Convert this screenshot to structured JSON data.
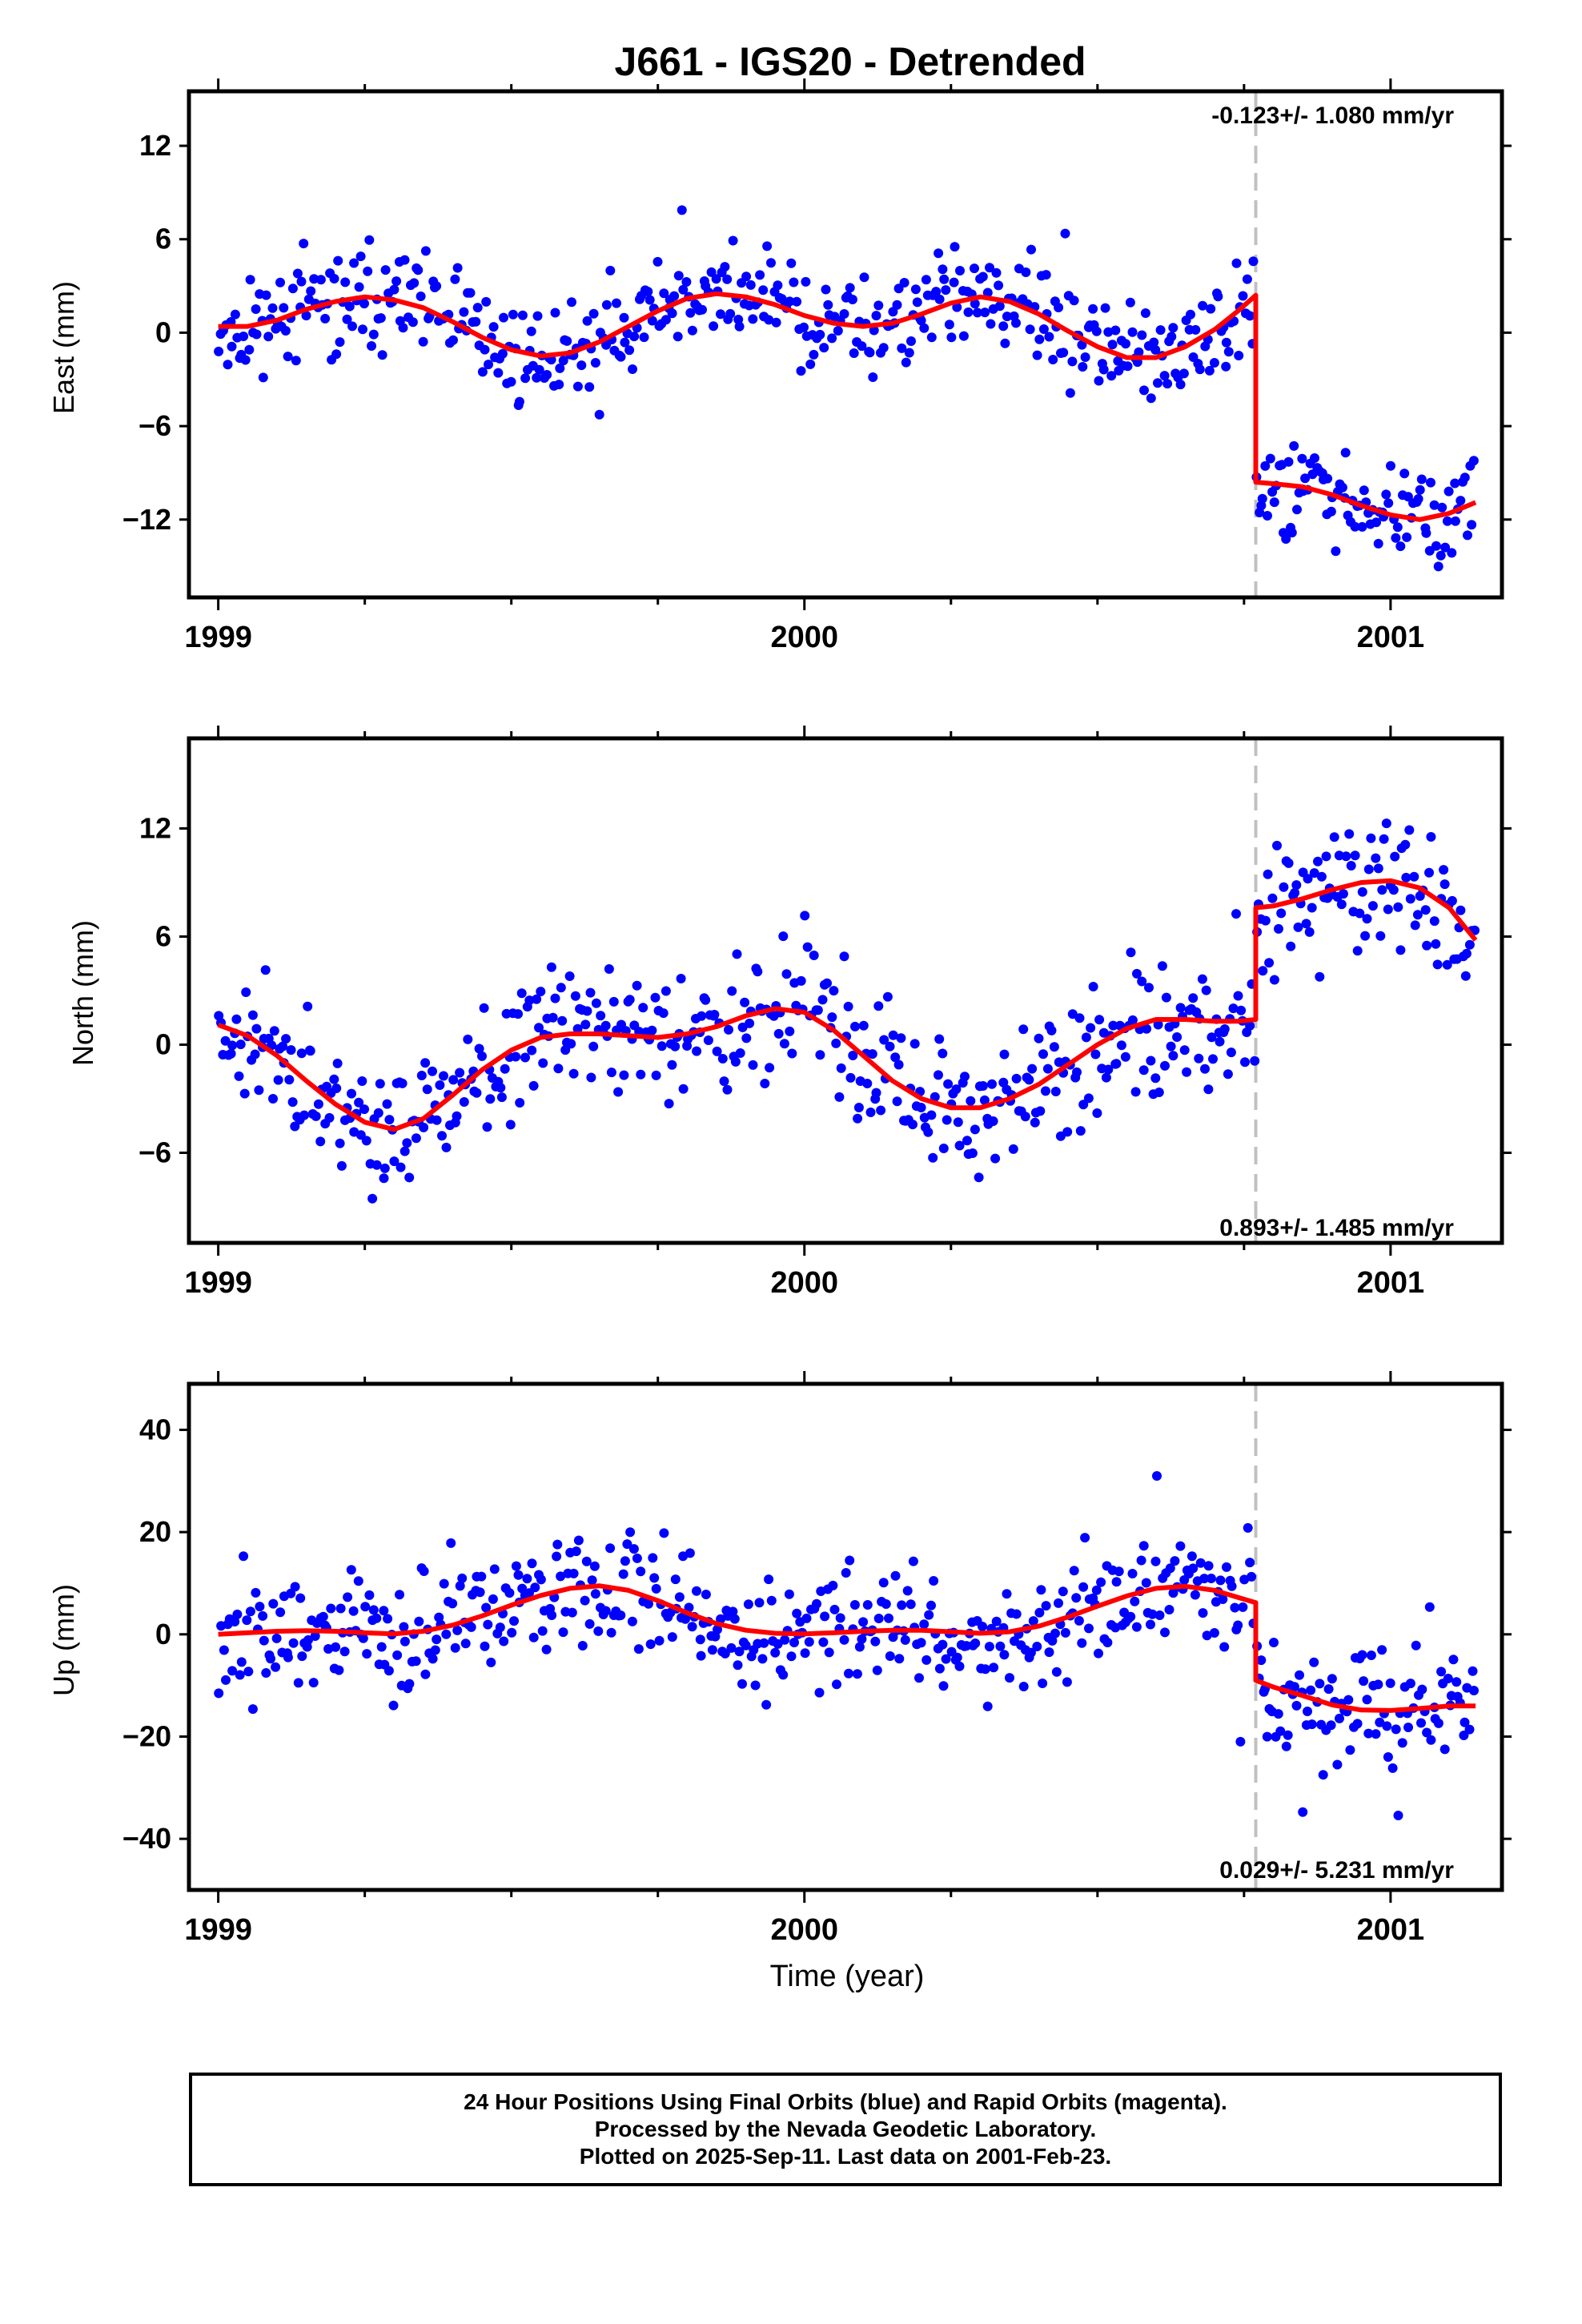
{
  "title": "J661 - IGS20 - Detrended",
  "x_axis_label": "Time (year)",
  "footer": {
    "line1": "24 Hour Positions Using Final Orbits (blue) and Rapid Orbits (magenta).",
    "line2": "Processed by the Nevada Geodetic Laboratory.",
    "line3": "Plotted on 2025-Sep-11. Last data on 2001-Feb-23."
  },
  "colors": {
    "points": "#0000ff",
    "model": "#ff0000",
    "step_line": "#c0c0c0",
    "frame": "#000000"
  },
  "chart_data": [
    {
      "type": "scatter",
      "name": "east",
      "ylabel": "East (mm)",
      "rate_text": "-0.123+/- 1.080 mm/yr",
      "rate_position": "top-right",
      "xlim": [
        1998.95,
        2001.19
      ],
      "ylim": [
        -17,
        15.5
      ],
      "x_ticks": [
        1999,
        2000,
        2001
      ],
      "y_ticks": [
        -12,
        -6,
        0,
        6,
        12
      ],
      "step_epoch": 2000.77,
      "points": {
        "start": 1999.0,
        "end": 2001.145,
        "count": 560,
        "step_offset": -12,
        "amp": 2.5,
        "noise": 2.3,
        "seed": 11
      },
      "model_points": [
        [
          1999.0,
          0.4
        ],
        [
          1999.05,
          0.4
        ],
        [
          1999.1,
          0.8
        ],
        [
          1999.15,
          1.5
        ],
        [
          1999.2,
          2.0
        ],
        [
          1999.25,
          2.3
        ],
        [
          1999.3,
          2.1
        ],
        [
          1999.35,
          1.6
        ],
        [
          1999.4,
          0.7
        ],
        [
          1999.45,
          -0.3
        ],
        [
          1999.5,
          -1.1
        ],
        [
          1999.55,
          -1.5
        ],
        [
          1999.6,
          -1.3
        ],
        [
          1999.65,
          -0.6
        ],
        [
          1999.7,
          0.4
        ],
        [
          1999.75,
          1.4
        ],
        [
          1999.8,
          2.2
        ],
        [
          1999.85,
          2.5
        ],
        [
          1999.9,
          2.3
        ],
        [
          1999.95,
          1.8
        ],
        [
          2000.0,
          1.1
        ],
        [
          2000.05,
          0.6
        ],
        [
          2000.1,
          0.4
        ],
        [
          2000.15,
          0.6
        ],
        [
          2000.2,
          1.2
        ],
        [
          2000.25,
          1.9
        ],
        [
          2000.3,
          2.3
        ],
        [
          2000.35,
          2.0
        ],
        [
          2000.4,
          1.2
        ],
        [
          2000.45,
          0.1
        ],
        [
          2000.5,
          -0.9
        ],
        [
          2000.55,
          -1.6
        ],
        [
          2000.6,
          -1.6
        ],
        [
          2000.65,
          -0.9
        ],
        [
          2000.7,
          0.2
        ],
        [
          2000.74,
          1.4
        ],
        [
          2000.77,
          2.4
        ],
        [
          2000.77,
          -9.6
        ],
        [
          2000.8,
          -9.7
        ],
        [
          2000.85,
          -9.9
        ],
        [
          2000.9,
          -10.4
        ],
        [
          2000.95,
          -11.1
        ],
        [
          2001.0,
          -11.7
        ],
        [
          2001.05,
          -12.0
        ],
        [
          2001.1,
          -11.6
        ],
        [
          2001.145,
          -10.9
        ]
      ]
    },
    {
      "type": "scatter",
      "name": "north",
      "ylabel": "North (mm)",
      "rate_text": "0.893+/- 1.485 mm/yr",
      "rate_position": "bottom-right",
      "xlim": [
        1998.95,
        2001.19
      ],
      "ylim": [
        -11,
        17
      ],
      "x_ticks": [
        1999,
        2000,
        2001
      ],
      "y_ticks": [
        -6,
        0,
        6,
        12
      ],
      "step_epoch": 2000.77,
      "points": {
        "start": 1999.0,
        "end": 2001.145,
        "count": 560,
        "step_offset": 6,
        "amp": 2.0,
        "noise": 2.6,
        "seed": 23
      },
      "model_points": [
        [
          1999.0,
          1.1
        ],
        [
          1999.05,
          0.5
        ],
        [
          1999.1,
          -0.6
        ],
        [
          1999.15,
          -2.0
        ],
        [
          1999.2,
          -3.3
        ],
        [
          1999.25,
          -4.3
        ],
        [
          1999.3,
          -4.7
        ],
        [
          1999.35,
          -4.1
        ],
        [
          1999.4,
          -2.8
        ],
        [
          1999.45,
          -1.4
        ],
        [
          1999.5,
          -0.3
        ],
        [
          1999.55,
          0.4
        ],
        [
          1999.6,
          0.6
        ],
        [
          1999.65,
          0.6
        ],
        [
          1999.7,
          0.5
        ],
        [
          1999.75,
          0.4
        ],
        [
          1999.8,
          0.6
        ],
        [
          1999.85,
          1.0
        ],
        [
          1999.9,
          1.6
        ],
        [
          1999.95,
          2.0
        ],
        [
          2000.0,
          1.8
        ],
        [
          2000.05,
          0.8
        ],
        [
          2000.1,
          -0.6
        ],
        [
          2000.15,
          -2.0
        ],
        [
          2000.2,
          -3.0
        ],
        [
          2000.25,
          -3.5
        ],
        [
          2000.3,
          -3.5
        ],
        [
          2000.35,
          -3.0
        ],
        [
          2000.4,
          -2.2
        ],
        [
          2000.45,
          -1.1
        ],
        [
          2000.5,
          0.0
        ],
        [
          2000.55,
          0.9
        ],
        [
          2000.6,
          1.4
        ],
        [
          2000.65,
          1.4
        ],
        [
          2000.7,
          1.3
        ],
        [
          2000.74,
          1.3
        ],
        [
          2000.77,
          1.4
        ],
        [
          2000.77,
          7.6
        ],
        [
          2000.8,
          7.7
        ],
        [
          2000.85,
          8.1
        ],
        [
          2000.9,
          8.6
        ],
        [
          2000.95,
          9.0
        ],
        [
          2001.0,
          9.1
        ],
        [
          2001.05,
          8.7
        ],
        [
          2001.1,
          7.6
        ],
        [
          2001.145,
          5.8
        ]
      ]
    },
    {
      "type": "scatter",
      "name": "up",
      "ylabel": "Up (mm)",
      "rate_text": "0.029+/- 5.231 mm/yr",
      "rate_position": "bottom-right",
      "xlim": [
        1998.95,
        2001.19
      ],
      "ylim": [
        -50,
        49
      ],
      "x_ticks": [
        1999,
        2000,
        2001
      ],
      "y_ticks": [
        -40,
        -20,
        0,
        20,
        40
      ],
      "step_epoch": 2000.77,
      "points": {
        "start": 1999.0,
        "end": 2001.145,
        "count": 560,
        "step_offset": -15,
        "amp": 8.0,
        "noise": 8.5,
        "seed": 37
      },
      "model_points": [
        [
          1999.0,
          0.0
        ],
        [
          1999.05,
          0.3
        ],
        [
          1999.1,
          0.6
        ],
        [
          1999.15,
          0.7
        ],
        [
          1999.2,
          0.6
        ],
        [
          1999.25,
          0.3
        ],
        [
          1999.3,
          0.1
        ],
        [
          1999.35,
          0.6
        ],
        [
          1999.4,
          1.8
        ],
        [
          1999.45,
          3.6
        ],
        [
          1999.5,
          5.7
        ],
        [
          1999.55,
          7.6
        ],
        [
          1999.6,
          9.0
        ],
        [
          1999.65,
          9.5
        ],
        [
          1999.7,
          8.6
        ],
        [
          1999.75,
          6.6
        ],
        [
          1999.8,
          4.2
        ],
        [
          1999.85,
          2.1
        ],
        [
          1999.9,
          0.8
        ],
        [
          1999.95,
          0.2
        ],
        [
          2000.0,
          0.1
        ],
        [
          2000.05,
          0.3
        ],
        [
          2000.1,
          0.6
        ],
        [
          2000.15,
          0.8
        ],
        [
          2000.2,
          0.8
        ],
        [
          2000.25,
          0.5
        ],
        [
          2000.3,
          0.2
        ],
        [
          2000.35,
          0.5
        ],
        [
          2000.4,
          1.6
        ],
        [
          2000.45,
          3.4
        ],
        [
          2000.5,
          5.5
        ],
        [
          2000.55,
          7.5
        ],
        [
          2000.6,
          9.0
        ],
        [
          2000.65,
          9.4
        ],
        [
          2000.7,
          8.6
        ],
        [
          2000.74,
          7.2
        ],
        [
          2000.77,
          6.2
        ],
        [
          2000.77,
          -9.0
        ],
        [
          2000.8,
          -10.3
        ],
        [
          2000.85,
          -12.0
        ],
        [
          2000.9,
          -13.8
        ],
        [
          2000.95,
          -14.8
        ],
        [
          2001.0,
          -14.9
        ],
        [
          2001.05,
          -14.5
        ],
        [
          2001.1,
          -14.0
        ],
        [
          2001.145,
          -14.0
        ]
      ]
    }
  ]
}
